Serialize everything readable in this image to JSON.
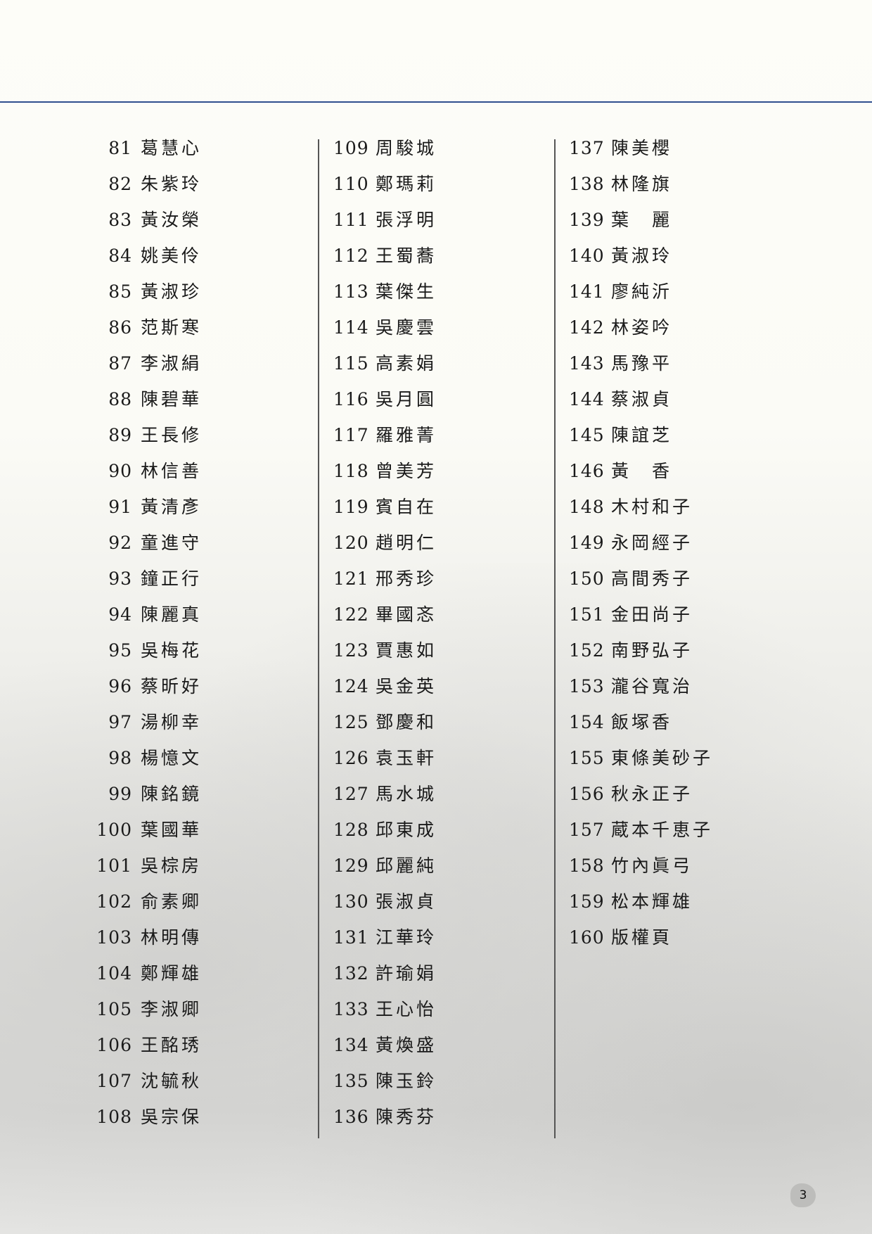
{
  "page_number": "3",
  "colors": {
    "header_rule": "#2f4f8f",
    "separator": "#555555"
  },
  "columns": [
    [
      {
        "num": "81",
        "name": "葛慧心"
      },
      {
        "num": "82",
        "name": "朱紫玲"
      },
      {
        "num": "83",
        "name": "黃汝榮"
      },
      {
        "num": "84",
        "name": "姚美伶"
      },
      {
        "num": "85",
        "name": "黃淑珍"
      },
      {
        "num": "86",
        "name": "范斯寒"
      },
      {
        "num": "87",
        "name": "李淑絹"
      },
      {
        "num": "88",
        "name": "陳碧華"
      },
      {
        "num": "89",
        "name": "王長修"
      },
      {
        "num": "90",
        "name": "林信善"
      },
      {
        "num": "91",
        "name": "黃清彥"
      },
      {
        "num": "92",
        "name": "童進守"
      },
      {
        "num": "93",
        "name": "鐘正行"
      },
      {
        "num": "94",
        "name": "陳麗真"
      },
      {
        "num": "95",
        "name": "吳梅花"
      },
      {
        "num": "96",
        "name": "蔡昕好"
      },
      {
        "num": "97",
        "name": "湯柳幸"
      },
      {
        "num": "98",
        "name": "楊憶文"
      },
      {
        "num": "99",
        "name": "陳銘鏡"
      },
      {
        "num": "100",
        "name": "葉國華"
      },
      {
        "num": "101",
        "name": "吳棕房"
      },
      {
        "num": "102",
        "name": "俞素卿"
      },
      {
        "num": "103",
        "name": "林明傳"
      },
      {
        "num": "104",
        "name": "鄭輝雄"
      },
      {
        "num": "105",
        "name": "李淑卿"
      },
      {
        "num": "106",
        "name": "王酩琇"
      },
      {
        "num": "107",
        "name": "沈毓秋"
      },
      {
        "num": "108",
        "name": "吳宗保"
      }
    ],
    [
      {
        "num": "109",
        "name": "周駿城"
      },
      {
        "num": "110",
        "name": "鄭瑪莉"
      },
      {
        "num": "111",
        "name": "張浮明"
      },
      {
        "num": "112",
        "name": "王蜀蕎"
      },
      {
        "num": "113",
        "name": "葉傑生"
      },
      {
        "num": "114",
        "name": "吳慶雲"
      },
      {
        "num": "115",
        "name": "高素娟"
      },
      {
        "num": "116",
        "name": "吳月圓"
      },
      {
        "num": "117",
        "name": "羅雅菁"
      },
      {
        "num": "118",
        "name": "曾美芳"
      },
      {
        "num": "119",
        "name": "賓自在"
      },
      {
        "num": "120",
        "name": "趙明仁"
      },
      {
        "num": "121",
        "name": "邢秀珍"
      },
      {
        "num": "122",
        "name": "畢國忞"
      },
      {
        "num": "123",
        "name": "賈惠如"
      },
      {
        "num": "124",
        "name": "吳金英"
      },
      {
        "num": "125",
        "name": "鄧慶和"
      },
      {
        "num": "126",
        "name": "袁玉軒"
      },
      {
        "num": "127",
        "name": "馬水城"
      },
      {
        "num": "128",
        "name": "邱東成"
      },
      {
        "num": "129",
        "name": "邱麗純"
      },
      {
        "num": "130",
        "name": "張淑貞"
      },
      {
        "num": "131",
        "name": "江華玲"
      },
      {
        "num": "132",
        "name": "許瑜娟"
      },
      {
        "num": "133",
        "name": "王心怡"
      },
      {
        "num": "134",
        "name": "黃煥盛"
      },
      {
        "num": "135",
        "name": "陳玉鈴"
      },
      {
        "num": "136",
        "name": "陳秀芬"
      }
    ],
    [
      {
        "num": "137",
        "name": "陳美櫻"
      },
      {
        "num": "138",
        "name": "林隆旗"
      },
      {
        "num": "139",
        "name": "葉　麗"
      },
      {
        "num": "140",
        "name": "黃淑玲"
      },
      {
        "num": "141",
        "name": "廖純沂"
      },
      {
        "num": "142",
        "name": "林姿吟"
      },
      {
        "num": "143",
        "name": "馬豫平"
      },
      {
        "num": "144",
        "name": "蔡淑貞"
      },
      {
        "num": "145",
        "name": "陳誼芝"
      },
      {
        "num": "146",
        "name": "黃　香"
      },
      {
        "num": "148",
        "name": "木村和子"
      },
      {
        "num": "149",
        "name": "永岡經子"
      },
      {
        "num": "150",
        "name": "高間秀子"
      },
      {
        "num": "151",
        "name": "金田尚子"
      },
      {
        "num": "152",
        "name": "南野弘子"
      },
      {
        "num": "153",
        "name": "瀧谷寬治"
      },
      {
        "num": "154",
        "name": "飯塚香"
      },
      {
        "num": "155",
        "name": "東條美砂子"
      },
      {
        "num": "156",
        "name": "秋永正子"
      },
      {
        "num": "157",
        "name": "蔵本千恵子"
      },
      {
        "num": "158",
        "name": "竹內眞弓"
      },
      {
        "num": "159",
        "name": "松本輝雄"
      },
      {
        "num": "160",
        "name": "版權頁"
      }
    ]
  ]
}
